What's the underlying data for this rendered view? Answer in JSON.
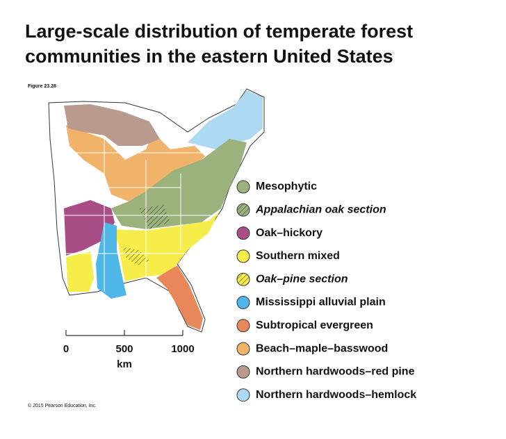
{
  "title": [
    "Large-scale distribution of temperate forest",
    "communities in the eastern United States"
  ],
  "figure_label": "Figure 23.28",
  "legend": [
    {
      "name": "Mesophytic",
      "color": "#9bb27d",
      "hatched": false,
      "italic": false
    },
    {
      "name": "Appalachian oak section",
      "color": "#9bb27d",
      "hatched": true,
      "italic": true
    },
    {
      "name": "Oak–hickory",
      "color": "#a84d86",
      "hatched": false,
      "italic": false
    },
    {
      "name": "Southern mixed",
      "color": "#f6ec4a",
      "hatched": false,
      "italic": false
    },
    {
      "name": "Oak–pine section",
      "color": "#f6ec4a",
      "hatched": true,
      "italic": true
    },
    {
      "name": "Mississippi alluvial plain",
      "color": "#4fb6e8",
      "hatched": false,
      "italic": false
    },
    {
      "name": "Subtropical evergreen",
      "color": "#e8885a",
      "hatched": false,
      "italic": false
    },
    {
      "name": "Beach–maple–basswood",
      "color": "#f1b36a",
      "hatched": false,
      "italic": false
    },
    {
      "name": "Northern hardwoods–red pine",
      "color": "#b89a8e",
      "hatched": false,
      "italic": false
    },
    {
      "name": "Northern hardwoods–hemlock",
      "color": "#aed9f3",
      "hatched": false,
      "italic": false
    }
  ],
  "scale": {
    "ticks": [
      0,
      500,
      1000
    ],
    "unit": "km"
  },
  "copyright": "© 2015 Pearson Education, Inc."
}
